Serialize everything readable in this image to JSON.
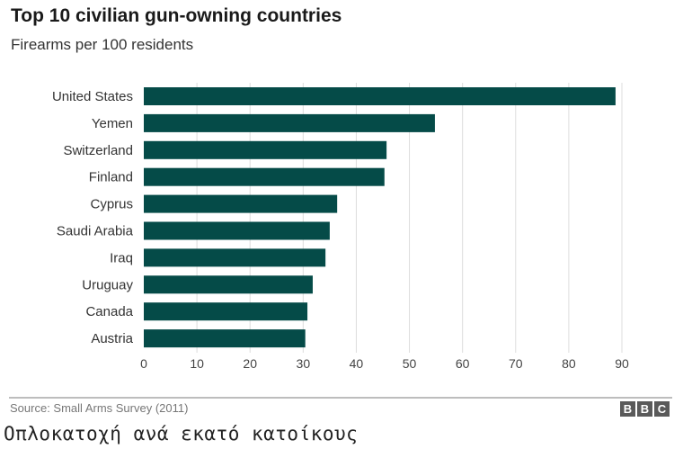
{
  "chart_data": {
    "type": "bar",
    "orientation": "horizontal",
    "title": "Top 10 civilian gun-owning countries",
    "subtitle": "Firearms per 100 residents",
    "categories": [
      "United States",
      "Yemen",
      "Switzerland",
      "Finland",
      "Cyprus",
      "Saudi Arabia",
      "Iraq",
      "Uruguay",
      "Canada",
      "Austria"
    ],
    "values": [
      88.8,
      54.8,
      45.7,
      45.3,
      36.4,
      35.0,
      34.2,
      31.8,
      30.8,
      30.4
    ],
    "xlim": [
      0,
      90
    ],
    "xticks": [
      0,
      10,
      20,
      30,
      40,
      50,
      60,
      70,
      80,
      90
    ],
    "grid": true,
    "xlabel": "",
    "ylabel": "",
    "bar_color": "#054b48"
  },
  "footer": {
    "source": "Source: Small Arms Survey (2011)",
    "logo": [
      "B",
      "B",
      "C"
    ]
  },
  "caption": "Οπλοκατοχή ανά εκατό κατοίκους"
}
